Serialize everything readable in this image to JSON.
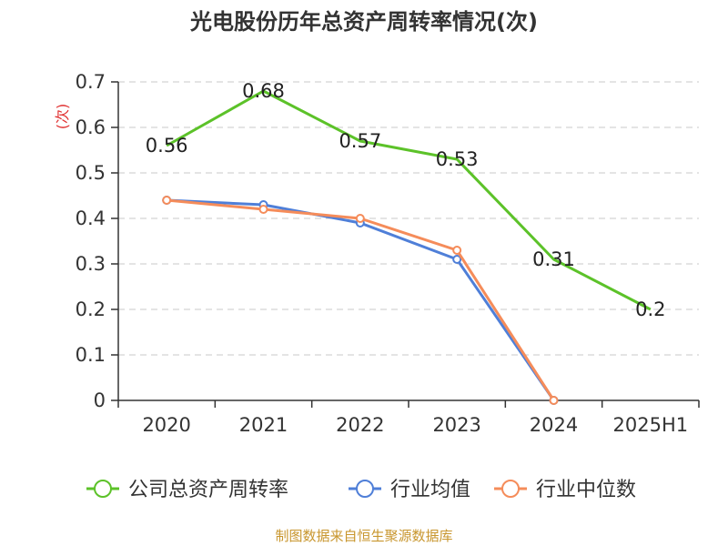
{
  "title": "光电股份历年总资产周转率情况(次)",
  "source": "制图数据来自恒生聚源数据库",
  "colors": {
    "source_text": "#c8962e",
    "axis": "#333333",
    "grid": "#c8c8c8",
    "ylabel": "#e03030"
  },
  "chart_data": {
    "type": "line",
    "title": "光电股份历年总资产周转率情况(次)",
    "ylabel": "(次)",
    "xlabel": "",
    "categories": [
      "2020",
      "2021",
      "2022",
      "2023",
      "2024",
      "2025H1"
    ],
    "y_ticks": [
      "0",
      "0.1",
      "0.2",
      "0.3",
      "0.4",
      "0.5",
      "0.6",
      "0.7"
    ],
    "ylim": [
      0,
      0.7
    ],
    "grid": true,
    "legend_position": "bottom",
    "series": [
      {
        "name": "公司总资产周转率",
        "color": "#5cc229",
        "values": [
          0.56,
          0.68,
          0.57,
          0.53,
          0.31,
          0.2
        ],
        "labels": [
          "0.56",
          "0.68",
          "0.57",
          "0.53",
          "0.31",
          "0.2"
        ],
        "show_labels": true,
        "show_markers": false
      },
      {
        "name": "行业均值",
        "color": "#4f7fd8",
        "values": [
          0.44,
          0.43,
          0.39,
          0.31,
          0.0,
          null
        ],
        "show_labels": false,
        "show_markers": true
      },
      {
        "name": "行业中位数",
        "color": "#f58c5a",
        "values": [
          0.44,
          0.42,
          0.4,
          0.33,
          0.0,
          null
        ],
        "show_labels": false,
        "show_markers": true
      }
    ]
  }
}
